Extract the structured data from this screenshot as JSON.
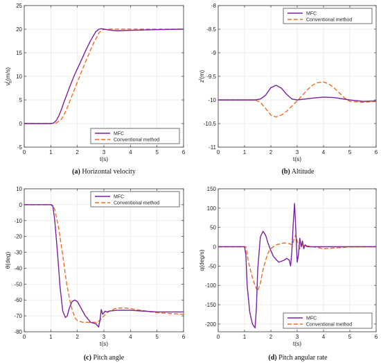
{
  "chart_data": [
    {
      "type": "line",
      "caption_letter": "(a)",
      "caption_text": "Horizontal velocity",
      "xlabel": "t(s)",
      "ylabel": "v",
      "ylabel_sub": "h",
      "ylabel_sup": "l",
      "ylabel_unit": "(m/s)",
      "xlim": [
        0,
        6
      ],
      "ylim": [
        -5,
        25
      ],
      "xticks": [
        "0",
        "1",
        "2",
        "3",
        "4",
        "5",
        "6"
      ],
      "yticks": [
        "-5",
        "0",
        "5",
        "10",
        "15",
        "20",
        "25"
      ],
      "legend_position": "bottom-right",
      "series": [
        {
          "name": "MFC",
          "color": "#7a1fa2",
          "dash": "solid",
          "x": [
            0,
            1,
            1.1,
            1.2,
            1.3,
            1.4,
            1.5,
            1.7,
            1.9,
            2.1,
            2.3,
            2.5,
            2.7,
            2.8,
            2.9,
            3.0,
            3.2,
            3.5,
            4,
            5,
            6
          ],
          "y": [
            0,
            0,
            0.1,
            0.6,
            1.6,
            3.0,
            4.6,
            7.6,
            10.4,
            12.8,
            15.3,
            17.6,
            19.5,
            19.95,
            20.1,
            20.0,
            19.8,
            19.65,
            19.75,
            19.9,
            20.0
          ]
        },
        {
          "name": "Conventional method",
          "color": "#f06a1e",
          "dash": "dashed",
          "x": [
            0,
            1,
            1.2,
            1.4,
            1.5,
            1.6,
            1.8,
            2.0,
            2.2,
            2.4,
            2.6,
            2.8,
            2.9,
            3.0,
            3.2,
            3.5,
            4,
            5,
            6
          ],
          "y": [
            0,
            0,
            0.1,
            0.9,
            1.9,
            3.1,
            5.9,
            8.8,
            11.6,
            14.3,
            16.9,
            19.1,
            19.7,
            19.95,
            20.0,
            20.0,
            20.0,
            20.0,
            20.0
          ]
        }
      ]
    },
    {
      "type": "line",
      "caption_letter": "(b)",
      "caption_text": "Altitude",
      "xlabel": "t(s)",
      "ylabel": "z",
      "ylabel_sub": "",
      "ylabel_sup": "l",
      "ylabel_unit": "(m)",
      "xlim": [
        0,
        6
      ],
      "ylim": [
        -11,
        -8
      ],
      "xticks": [
        "0",
        "1",
        "2",
        "3",
        "4",
        "5",
        "6"
      ],
      "yticks": [
        "-11",
        "-10.5",
        "-10",
        "-9.5",
        "-9",
        "-8.5",
        "-8"
      ],
      "legend_position": "top-right",
      "series": [
        {
          "name": "MFC",
          "color": "#7a1fa2",
          "dash": "solid",
          "x": [
            0,
            1,
            1.4,
            1.6,
            1.8,
            2.0,
            2.2,
            2.4,
            2.6,
            2.8,
            3.0,
            3.3,
            3.6,
            4.0,
            4.4,
            5.0,
            5.5,
            6
          ],
          "y": [
            -10,
            -10,
            -10,
            -9.98,
            -9.9,
            -9.74,
            -9.69,
            -9.75,
            -9.88,
            -9.98,
            -10.0,
            -9.98,
            -9.96,
            -9.94,
            -9.95,
            -10.0,
            -10.03,
            -10.02
          ]
        },
        {
          "name": "Conventional method",
          "color": "#f06a1e",
          "dash": "dashed",
          "x": [
            0,
            1,
            1.4,
            1.6,
            1.8,
            2.0,
            2.2,
            2.4,
            2.6,
            2.8,
            3.0,
            3.2,
            3.4,
            3.6,
            3.8,
            4.0,
            4.2,
            4.4,
            4.6,
            4.8,
            5.0,
            5.5,
            6
          ],
          "y": [
            -10,
            -10,
            -10,
            -10.05,
            -10.18,
            -10.32,
            -10.36,
            -10.32,
            -10.24,
            -10.13,
            -10.02,
            -9.9,
            -9.78,
            -9.68,
            -9.63,
            -9.62,
            -9.66,
            -9.74,
            -9.85,
            -9.96,
            -10.03,
            -10.05,
            -10.03
          ]
        }
      ]
    },
    {
      "type": "line",
      "caption_letter": "(c)",
      "caption_text": "Pitch angle",
      "xlabel": "t(s)",
      "ylabel": "θ(deg)",
      "ylabel_sub": "",
      "ylabel_sup": "",
      "ylabel_unit": "",
      "xlim": [
        0,
        6
      ],
      "ylim": [
        -80,
        10
      ],
      "xticks": [
        "0",
        "1",
        "2",
        "3",
        "4",
        "5",
        "6"
      ],
      "yticks": [
        "-80",
        "-70",
        "-60",
        "-50",
        "-40",
        "-30",
        "-20",
        "-10",
        "0",
        "10"
      ],
      "legend_position": "top-right",
      "series": [
        {
          "name": "MFC",
          "color": "#7a1fa2",
          "dash": "solid",
          "x": [
            0,
            1.0,
            1.08,
            1.15,
            1.25,
            1.35,
            1.45,
            1.55,
            1.62,
            1.7,
            1.8,
            1.9,
            2.0,
            2.1,
            2.3,
            2.5,
            2.7,
            2.8,
            2.85,
            2.9,
            2.95,
            3.0,
            3.05,
            3.1,
            3.2,
            3.5,
            4.0,
            4.5,
            5.0,
            6.0
          ],
          "y": [
            0,
            0,
            -1,
            -10,
            -30,
            -52,
            -67,
            -71,
            -70,
            -65,
            -61,
            -60,
            -61,
            -64,
            -70,
            -74,
            -75,
            -77,
            -73,
            -66,
            -69,
            -68,
            -67,
            -67.5,
            -67,
            -66.5,
            -66.5,
            -67,
            -67.5,
            -67.5
          ]
        },
        {
          "name": "Conventional method",
          "color": "#f06a1e",
          "dash": "dashed",
          "x": [
            0,
            1.05,
            1.15,
            1.3,
            1.45,
            1.6,
            1.75,
            1.9,
            2.0,
            2.2,
            2.5,
            2.7,
            2.8,
            2.9,
            3.0,
            3.2,
            3.5,
            3.8,
            4.2,
            4.6,
            5.0,
            5.5,
            6.0
          ],
          "y": [
            0,
            0,
            -3,
            -15,
            -32,
            -50,
            -63,
            -71,
            -73,
            -74,
            -74,
            -74,
            -73.5,
            -72,
            -70,
            -67,
            -65,
            -65,
            -66,
            -67,
            -68,
            -68.5,
            -69
          ]
        }
      ]
    },
    {
      "type": "line",
      "caption_letter": "(d)",
      "caption_text": "Pitch angular rate",
      "xlabel": "t(s)",
      "ylabel": "q(deg/s)",
      "ylabel_sub": "",
      "ylabel_sup": "",
      "ylabel_unit": "",
      "xlim": [
        0,
        6
      ],
      "ylim": [
        -220,
        150
      ],
      "xticks": [
        "0",
        "1",
        "2",
        "3",
        "4",
        "5",
        "6"
      ],
      "yticks": [
        "-200",
        "-150",
        "-100",
        "-50",
        "0",
        "50",
        "100",
        "150"
      ],
      "legend_position": "bottom-right",
      "series": [
        {
          "name": "MFC",
          "color": "#7a1fa2",
          "dash": "solid",
          "x": [
            0,
            1.0,
            1.05,
            1.1,
            1.2,
            1.3,
            1.4,
            1.45,
            1.5,
            1.6,
            1.7,
            1.8,
            1.9,
            2.0,
            2.1,
            2.2,
            2.3,
            2.5,
            2.6,
            2.7,
            2.75,
            2.8,
            2.85,
            2.9,
            2.95,
            3.0,
            3.05,
            3.1,
            3.15,
            3.2,
            3.25,
            3.3,
            3.4,
            3.6,
            4.0,
            5.0,
            6.0
          ],
          "y": [
            0,
            0,
            -20,
            -100,
            -170,
            -200,
            -210,
            -160,
            -60,
            25,
            40,
            30,
            8,
            -10,
            -25,
            -33,
            -40,
            -35,
            -30,
            -35,
            -50,
            -10,
            60,
            112,
            40,
            -40,
            -20,
            22,
            0,
            15,
            -5,
            5,
            0,
            0,
            0,
            0,
            0
          ]
        },
        {
          "name": "Conventional method",
          "color": "#f06a1e",
          "dash": "dashed",
          "x": [
            0,
            1.05,
            1.15,
            1.3,
            1.4,
            1.5,
            1.6,
            1.7,
            1.8,
            1.9,
            2.0,
            2.2,
            2.5,
            2.7,
            2.8,
            2.85,
            2.9,
            2.95,
            3.0,
            3.1,
            3.2,
            3.3,
            3.4,
            3.6,
            4.0,
            4.5,
            5.0,
            6.0
          ],
          "y": [
            0,
            0,
            -40,
            -80,
            -100,
            -115,
            -95,
            -60,
            -35,
            -15,
            -5,
            5,
            10,
            8,
            5,
            12,
            25,
            30,
            15,
            -5,
            5,
            0,
            2,
            0,
            -5,
            -3,
            0,
            0
          ]
        }
      ]
    }
  ]
}
